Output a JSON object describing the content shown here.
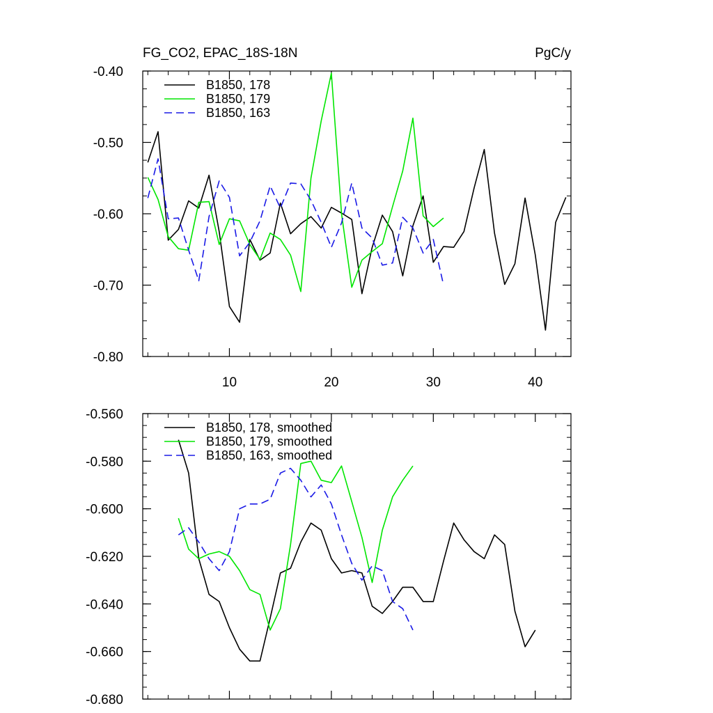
{
  "chart_data": [
    {
      "type": "line",
      "title_left": "FG_CO2, EPAC_18S-18N",
      "title_right": "PgC/y",
      "xlim": [
        1.5,
        43.5
      ],
      "ylim": [
        -0.8,
        -0.4
      ],
      "yticks": [
        -0.4,
        -0.5,
        -0.6,
        -0.7,
        -0.8
      ],
      "ytick_labels": [
        "-0.40",
        "-0.50",
        "-0.60",
        "-0.70",
        "-0.80"
      ],
      "xticks": [
        10,
        20,
        30,
        40
      ],
      "xtick_labels": [
        "10",
        "20",
        "30",
        "40"
      ],
      "legend_position": "top-left",
      "series": [
        {
          "name": "B1850, 178",
          "color": "#000000",
          "dash": "solid",
          "x_start": 2,
          "values": [
            -0.528,
            -0.485,
            -0.637,
            -0.622,
            -0.582,
            -0.592,
            -0.546,
            -0.625,
            -0.73,
            -0.752,
            -0.636,
            -0.665,
            -0.655,
            -0.585,
            -0.628,
            -0.614,
            -0.604,
            -0.62,
            -0.591,
            -0.599,
            -0.608,
            -0.712,
            -0.647,
            -0.602,
            -0.625,
            -0.687,
            -0.617,
            -0.575,
            -0.668,
            -0.646,
            -0.647,
            -0.625,
            -0.564,
            -0.51,
            -0.627,
            -0.699,
            -0.67,
            -0.578,
            -0.658,
            -0.763,
            -0.612,
            -0.577
          ]
        },
        {
          "name": "B1850, 179",
          "color": "#00e600",
          "dash": "solid",
          "x_start": 2,
          "values": [
            -0.549,
            -0.58,
            -0.632,
            -0.649,
            -0.651,
            -0.584,
            -0.583,
            -0.643,
            -0.607,
            -0.61,
            -0.643,
            -0.664,
            -0.627,
            -0.636,
            -0.658,
            -0.709,
            -0.55,
            -0.47,
            -0.403,
            -0.6,
            -0.703,
            -0.665,
            -0.653,
            -0.642,
            -0.59,
            -0.54,
            -0.466,
            -0.603,
            -0.618,
            -0.606
          ]
        },
        {
          "name": "B1850, 163",
          "color": "#1a1ae6",
          "dash": "dashed",
          "x_start": 2,
          "values": [
            -0.578,
            -0.523,
            -0.607,
            -0.606,
            -0.651,
            -0.694,
            -0.604,
            -0.554,
            -0.577,
            -0.659,
            -0.64,
            -0.61,
            -0.561,
            -0.592,
            -0.557,
            -0.558,
            -0.581,
            -0.612,
            -0.647,
            -0.613,
            -0.557,
            -0.62,
            -0.634,
            -0.672,
            -0.669,
            -0.605,
            -0.62,
            -0.655,
            -0.636,
            -0.7
          ]
        }
      ]
    },
    {
      "type": "line",
      "xlim": [
        1.5,
        43.5
      ],
      "ylim": [
        -0.68,
        -0.56
      ],
      "yticks": [
        -0.56,
        -0.58,
        -0.6,
        -0.62,
        -0.64,
        -0.66,
        -0.68
      ],
      "ytick_labels": [
        "-0.560",
        "-0.580",
        "-0.600",
        "-0.620",
        "-0.640",
        "-0.660",
        "-0.680"
      ],
      "xticks": [
        10,
        20,
        30,
        40
      ],
      "legend_position": "top-left",
      "series": [
        {
          "name": "B1850, 178, smoothed",
          "color": "#000000",
          "dash": "solid",
          "x_start": 5,
          "values": [
            -0.571,
            -0.585,
            -0.621,
            -0.636,
            -0.639,
            -0.65,
            -0.659,
            -0.664,
            -0.664,
            -0.646,
            -0.627,
            -0.625,
            -0.614,
            -0.606,
            -0.609,
            -0.621,
            -0.627,
            -0.626,
            -0.627,
            -0.641,
            -0.644,
            -0.639,
            -0.633,
            -0.633,
            -0.639,
            -0.639,
            -0.622,
            -0.606,
            -0.613,
            -0.618,
            -0.621,
            -0.611,
            -0.615,
            -0.643,
            -0.658,
            -0.651
          ]
        },
        {
          "name": "B1850, 179, smoothed",
          "color": "#00e600",
          "dash": "solid",
          "x_start": 5,
          "values": [
            -0.604,
            -0.617,
            -0.621,
            -0.619,
            -0.618,
            -0.62,
            -0.626,
            -0.634,
            -0.636,
            -0.651,
            -0.642,
            -0.615,
            -0.581,
            -0.58,
            -0.588,
            -0.589,
            -0.582,
            -0.597,
            -0.612,
            -0.631,
            -0.609,
            -0.595,
            -0.588,
            -0.582
          ]
        },
        {
          "name": "B1850, 163, smoothed",
          "color": "#1a1ae6",
          "dash": "dashed",
          "x_start": 5,
          "values": [
            -0.611,
            -0.608,
            -0.614,
            -0.621,
            -0.626,
            -0.618,
            -0.6,
            -0.598,
            -0.598,
            -0.596,
            -0.585,
            -0.583,
            -0.588,
            -0.595,
            -0.59,
            -0.598,
            -0.611,
            -0.623,
            -0.63,
            -0.624,
            -0.626,
            -0.639,
            -0.642,
            -0.651
          ]
        }
      ]
    }
  ]
}
